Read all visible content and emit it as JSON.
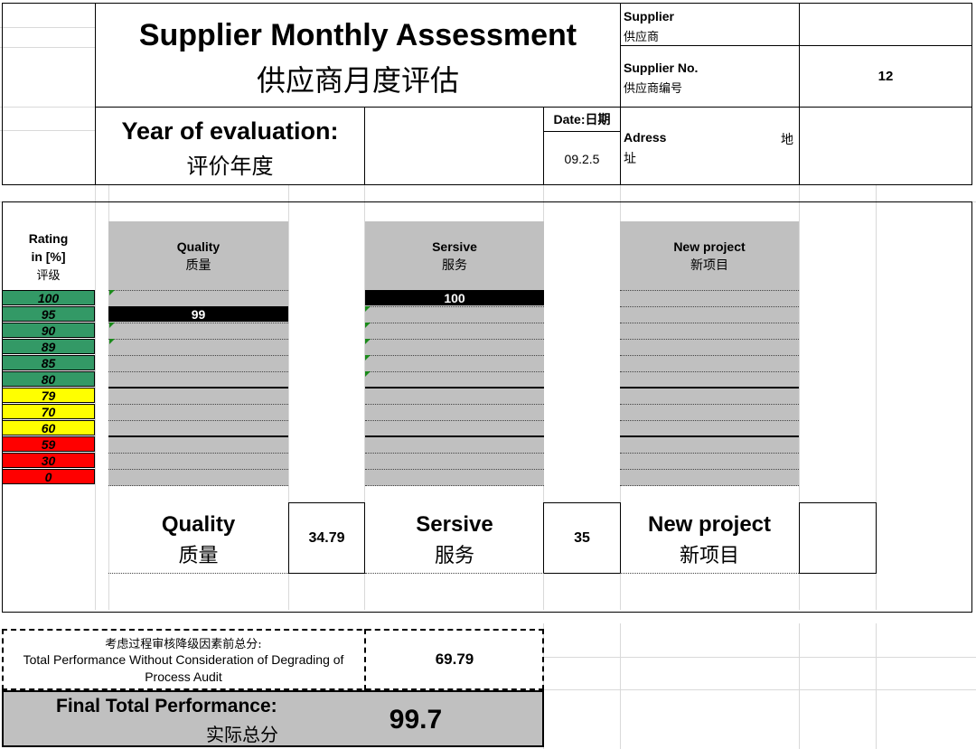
{
  "header": {
    "title_en": "Supplier Monthly Assessment",
    "title_cn": "供应商月度评估",
    "supplier_label_en": "Supplier",
    "supplier_label_cn": "供应商",
    "supplier_value": "",
    "supplier_no_label_en": "Supplier No.",
    "supplier_no_label_cn": "供应商编号",
    "supplier_no_value": "12",
    "year_label_en": "Year of evaluation:",
    "year_label_cn": "评价年度",
    "year_value": "",
    "date_label": "Date:日期",
    "date_value": "09.2.5",
    "address_label_en": "Adress",
    "address_label_cn_1": "地",
    "address_label_cn_2": "址",
    "address_value": ""
  },
  "rating": {
    "label_en_1": "Rating",
    "label_en_2": "in [%]",
    "label_cn": "评级",
    "levels": [
      {
        "value": "100",
        "color": "#339966"
      },
      {
        "value": "95",
        "color": "#339966"
      },
      {
        "value": "90",
        "color": "#339966"
      },
      {
        "value": "89",
        "color": "#339966"
      },
      {
        "value": "85",
        "color": "#339966"
      },
      {
        "value": "80",
        "color": "#339966"
      },
      {
        "value": "79",
        "color": "#ffff00"
      },
      {
        "value": "70",
        "color": "#ffff00"
      },
      {
        "value": "60",
        "color": "#ffff00"
      },
      {
        "value": "59",
        "color": "#ff0000"
      },
      {
        "value": "30",
        "color": "#ff0000"
      },
      {
        "value": "0",
        "color": "#ff0000"
      }
    ]
  },
  "columns": [
    {
      "title_en": "Quality",
      "title_cn": "质量",
      "bar_value": "99",
      "bar_rating": 95
    },
    {
      "title_en": "Sersive",
      "title_cn": "服务",
      "bar_value": "100",
      "bar_rating": 100
    },
    {
      "title_en": "New project",
      "title_cn": "新项目",
      "bar_value": "",
      "bar_rating": null
    }
  ],
  "scores": [
    {
      "label_en": "Quality",
      "label_cn": "质量",
      "value": "34.79"
    },
    {
      "label_en": "Sersive",
      "label_cn": "服务",
      "value": "35"
    },
    {
      "label_en": "New project",
      "label_cn": "新项目",
      "value": ""
    }
  ],
  "totals": {
    "without_audit_cn": "考虑过程审核降级因素前总分:",
    "without_audit_en": "Total Performance Without Consideration of Degrading of Process Audit",
    "without_audit_value": "69.79",
    "final_label_en": "Final Total Performance:",
    "final_label_cn": "实际总分",
    "final_value": "99.7"
  },
  "colors": {
    "green": "#339966",
    "yellow": "#ffff00",
    "red": "#ff0000",
    "gray": "#c0c0c0",
    "grid": "#d9d9d9"
  }
}
